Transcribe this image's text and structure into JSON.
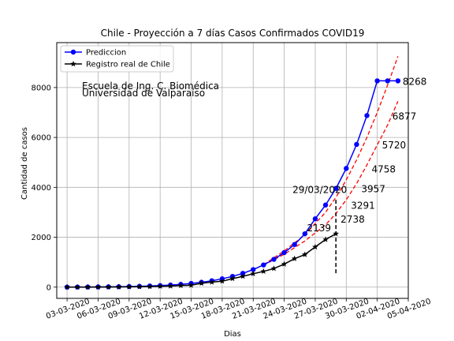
{
  "chart_data": {
    "type": "line",
    "title": "Chile - Proyección a 7 días Casos Confirmados COVID19",
    "xlabel": "Dias",
    "ylabel": "Cantidad de casos",
    "xlim": [
      -1,
      33
    ],
    "ylim": [
      -450,
      9800
    ],
    "grid": true,
    "legend": "top-left",
    "x_tick_values": [
      0,
      3,
      6,
      9,
      12,
      15,
      18,
      21,
      24,
      27,
      30,
      33
    ],
    "x_tick_labels": [
      "03-03-2020",
      "06-03-2020",
      "09-03-2020",
      "12-03-2020",
      "15-03-2020",
      "18-03-2020",
      "21-03-2020",
      "24-03-2020",
      "27-03-2020",
      "30-03-2020",
      "02-04-2020",
      "05-04-2020"
    ],
    "y_ticks": [
      0,
      2000,
      4000,
      6000,
      8000
    ],
    "series": [
      {
        "name": "Prediccion",
        "color": "#0000ff",
        "marker": "circle",
        "x": [
          0,
          1,
          2,
          3,
          4,
          5,
          6,
          7,
          8,
          9,
          10,
          11,
          12,
          13,
          14,
          15,
          16,
          17,
          18,
          19,
          20,
          21,
          22,
          23,
          24,
          25,
          26,
          27,
          28,
          29,
          30,
          31,
          32,
          33
        ],
        "y": [
          2,
          4,
          6,
          9,
          13,
          18,
          25,
          34,
          47,
          63,
          85,
          113,
          149,
          196,
          256,
          333,
          431,
          553,
          704,
          890,
          1115,
          1386,
          1709,
          2139,
          2738,
          3291,
          3957,
          4758,
          5720,
          6877,
          8268,
          8268,
          8268,
          8268
        ]
      },
      {
        "name": "Registro real de Chile",
        "color": "#000000",
        "marker": "star",
        "x": [
          0,
          1,
          2,
          3,
          4,
          5,
          6,
          7,
          8,
          9,
          10,
          11,
          12,
          13,
          14,
          15,
          16,
          17,
          18,
          19,
          20,
          21,
          22,
          23,
          24,
          25,
          26
        ],
        "y": [
          1,
          1,
          3,
          5,
          7,
          10,
          13,
          17,
          23,
          33,
          43,
          61,
          75,
          155,
          201,
          238,
          342,
          434,
          537,
          632,
          746,
          922,
          1142,
          1306,
          1610,
          1909,
          2139
        ]
      }
    ],
    "bands": {
      "color": "#ff0000",
      "upper": [
        [
          19,
          900
        ],
        [
          21,
          1450
        ],
        [
          23,
          2100
        ],
        [
          25,
          3000
        ],
        [
          26,
          3600
        ],
        [
          27,
          4300
        ],
        [
          28,
          5100
        ],
        [
          29,
          6000
        ],
        [
          30,
          7000
        ],
        [
          31,
          8100
        ],
        [
          32,
          9250
        ]
      ],
      "lower": [
        [
          19,
          880
        ],
        [
          21,
          1320
        ],
        [
          23,
          1850
        ],
        [
          25,
          2500
        ],
        [
          26,
          2950
        ],
        [
          27,
          3500
        ],
        [
          28,
          4150
        ],
        [
          29,
          4900
        ],
        [
          30,
          5700
        ],
        [
          31,
          6500
        ],
        [
          32,
          7450
        ]
      ]
    },
    "vline": {
      "x": 26,
      "ymin": 500,
      "ymax": 3500
    },
    "annotations": {
      "school_line1": "Escuela de Ing. C. Biomédica",
      "school_line2": "Universidad de Valparaíso",
      "date": "29/03/2020",
      "real_last": "2139",
      "pred_labels": [
        {
          "x": 27,
          "y": 2738,
          "text": "2738"
        },
        {
          "x": 28,
          "y": 3291,
          "text": "3291"
        },
        {
          "x": 29,
          "y": 3957,
          "text": "3957"
        },
        {
          "x": 30,
          "y": 4758,
          "text": "4758"
        },
        {
          "x": 31,
          "y": 5720,
          "text": "5720"
        },
        {
          "x": 32,
          "y": 6877,
          "text": "6877"
        },
        {
          "x": 33,
          "y": 8268,
          "text": "8268"
        }
      ]
    }
  }
}
